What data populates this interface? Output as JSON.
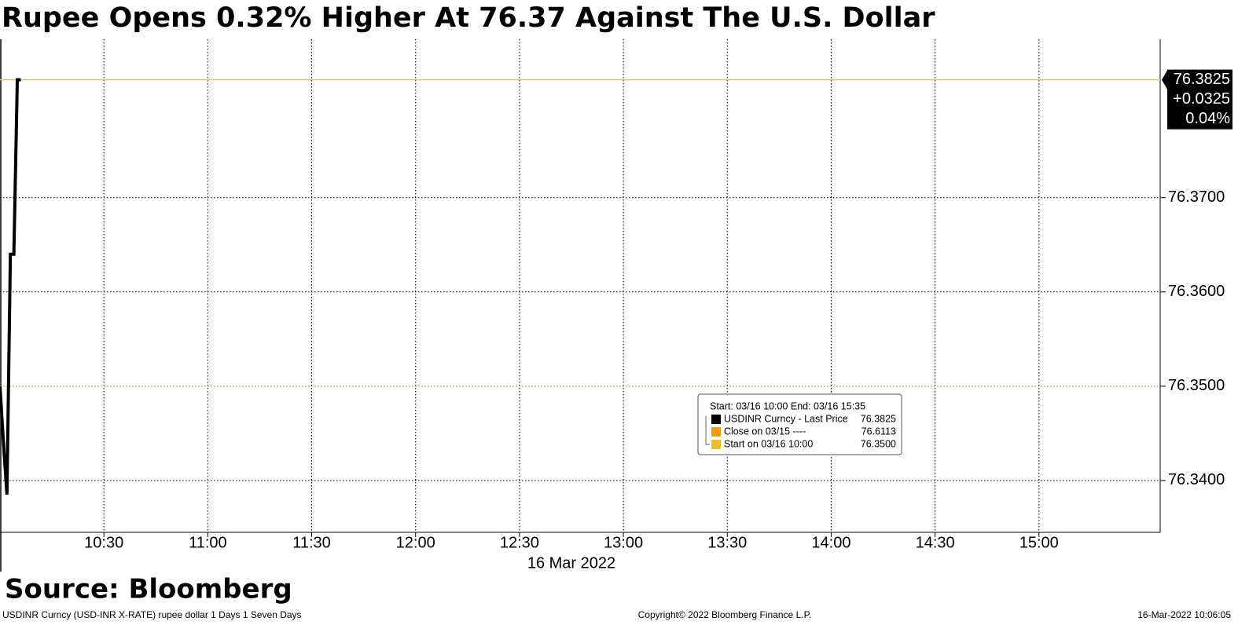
{
  "chart_data": {
    "type": "line",
    "title": "Rupee Opens 0.32% Higher At 76.37 Against The U.S. Dollar",
    "x_label": "16 Mar 2022",
    "x": [
      "10:00",
      "10:01",
      "10:02",
      "10:03",
      "10:04",
      "10:05",
      "10:06"
    ],
    "series": [
      {
        "name": "USDINR Curncy - Last Price",
        "color": "#000000",
        "values": [
          76.35,
          76.344,
          76.3385,
          76.364,
          76.364,
          76.3825,
          76.3825
        ]
      }
    ],
    "xlim": [
      "10:00",
      "15:35"
    ],
    "xticks": [
      "10:30",
      "11:00",
      "11:30",
      "12:00",
      "12:30",
      "13:00",
      "13:30",
      "14:00",
      "14:30",
      "15:00"
    ],
    "ylim": [
      76.3345,
      76.3868
    ],
    "yticks": [
      {
        "value": 76.34,
        "label": "76.3400"
      },
      {
        "value": 76.35,
        "label": "76.3500"
      },
      {
        "value": 76.36,
        "label": "76.3600"
      },
      {
        "value": 76.37,
        "label": "76.3700"
      }
    ],
    "grid": true,
    "last_line_color": "#e8c75a",
    "last_box": {
      "price": "76.3825",
      "change": "+0.0325",
      "percent": "0.04%"
    },
    "legend": {
      "title": "Start: 03/16 10:00 End: 03/16 15:35",
      "items": [
        {
          "name": "USDINR Curncy - Last Price",
          "color": "#000000",
          "value": 76.3825,
          "value_label": "76.3825"
        },
        {
          "name": "Close on 03/15 ----",
          "color": "#f39c12",
          "value": 76.6113,
          "value_label": "76.6113"
        },
        {
          "name": "Start on 03/16 10:00",
          "color": "#e8c02a",
          "value": 76.35,
          "value_label": "76.3500"
        }
      ]
    },
    "source": "Source: Bloomberg",
    "footer": {
      "left": "USDINR Curncy (USD-INR X-RATE) rupee dollar 1 Days 1 Seven Days",
      "center": "Copyright© 2022 Bloomberg Finance L.P.",
      "right": "16-Mar-2022 10:06:05"
    }
  }
}
